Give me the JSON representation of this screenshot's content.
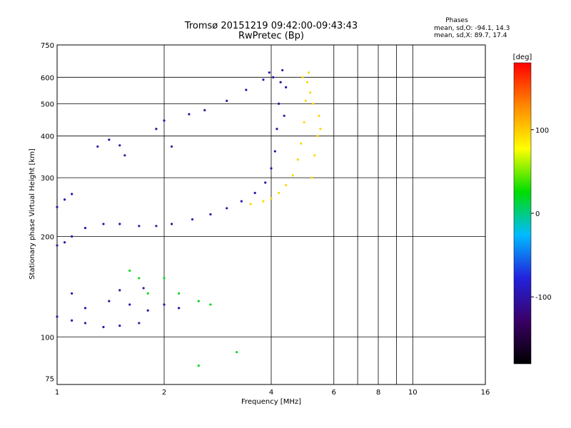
{
  "colors": {
    "background": "#ffffff",
    "axis": "#000000",
    "colorbar": [
      "#000000",
      "#3a0066",
      "#2222dd",
      "#00bbff",
      "#00dd00",
      "#ffff00",
      "#ff8800",
      "#ff0000"
    ]
  },
  "header": {
    "title_line1": "Tromsø 20151219 09:42:00-09:43:43",
    "title_line2": "RwPretec (Bp)",
    "stats_label": "Phases",
    "stats_o": "mean, sd,O: -94.1, 14.3",
    "stats_x": "mean, sd,X:  89.7, 17.4"
  },
  "chart_data": {
    "type": "scatter",
    "title": "Tromsø 20151219 09:42:00-09:43:43",
    "subtitle": "RwPretec (Bp)",
    "xlabel": "Frequency [MHz]",
    "ylabel": "Stationary phase Virtual Height [km]",
    "x_scale": "log",
    "y_scale": "log",
    "xlim": [
      1,
      16
    ],
    "ylim": [
      72,
      750
    ],
    "grid": true,
    "x_ticks": [
      1,
      2,
      4,
      6,
      8,
      10,
      16
    ],
    "x_tick_labels": [
      "1",
      "2",
      "4",
      "6",
      "8",
      "10",
      "16"
    ],
    "x_grid": [
      2,
      4,
      6,
      7,
      8,
      9,
      10
    ],
    "y_ticks": [
      75,
      100,
      200,
      300,
      400,
      500,
      600,
      750
    ],
    "y_tick_labels": [
      "75",
      "100",
      "200",
      "300",
      "400",
      "500",
      "600",
      "750"
    ],
    "y_grid": [
      100,
      200,
      300,
      400,
      500,
      600
    ],
    "colorbar": {
      "label": "[deg]",
      "min": -180,
      "max": 180,
      "ticks": [
        100,
        0,
        -100
      ],
      "tick_labels": [
        "100",
        "0",
        "-100"
      ]
    },
    "series": [
      {
        "color_value": -100,
        "traces": [
          {
            "f": 1.0,
            "h": 188
          },
          {
            "f": 1.05,
            "h": 192
          },
          {
            "f": 1.1,
            "h": 200
          },
          {
            "f": 1.2,
            "h": 212
          },
          {
            "f": 1.35,
            "h": 218
          },
          {
            "f": 1.5,
            "h": 218
          },
          {
            "f": 1.7,
            "h": 215
          },
          {
            "f": 1.9,
            "h": 215
          },
          {
            "f": 2.1,
            "h": 218
          },
          {
            "f": 2.4,
            "h": 225
          },
          {
            "f": 2.7,
            "h": 233
          },
          {
            "f": 3.0,
            "h": 243
          },
          {
            "f": 3.3,
            "h": 255
          },
          {
            "f": 3.6,
            "h": 270
          },
          {
            "f": 3.85,
            "h": 290
          },
          {
            "f": 4.0,
            "h": 320
          },
          {
            "f": 4.1,
            "h": 360
          },
          {
            "f": 4.15,
            "h": 420
          },
          {
            "f": 4.2,
            "h": 500
          },
          {
            "f": 4.25,
            "h": 580
          },
          {
            "f": 4.3,
            "h": 630
          },
          {
            "f": 4.35,
            "h": 460
          },
          {
            "f": 4.4,
            "h": 560
          },
          {
            "f": 3.95,
            "h": 620
          },
          {
            "f": 4.05,
            "h": 600
          },
          {
            "f": 1.0,
            "h": 245
          },
          {
            "f": 1.05,
            "h": 258
          },
          {
            "f": 1.1,
            "h": 268
          },
          {
            "f": 1.3,
            "h": 372
          },
          {
            "f": 1.4,
            "h": 390
          },
          {
            "f": 1.5,
            "h": 375
          },
          {
            "f": 1.55,
            "h": 350
          },
          {
            "f": 1.9,
            "h": 420
          },
          {
            "f": 2.0,
            "h": 445
          },
          {
            "f": 2.1,
            "h": 372
          },
          {
            "f": 2.35,
            "h": 465
          },
          {
            "f": 2.6,
            "h": 478
          },
          {
            "f": 3.0,
            "h": 510
          },
          {
            "f": 3.4,
            "h": 550
          },
          {
            "f": 3.8,
            "h": 590
          },
          {
            "f": 1.0,
            "h": 115
          },
          {
            "f": 1.1,
            "h": 112
          },
          {
            "f": 1.2,
            "h": 110
          },
          {
            "f": 1.35,
            "h": 107
          },
          {
            "f": 1.5,
            "h": 108
          },
          {
            "f": 1.7,
            "h": 110
          },
          {
            "f": 1.2,
            "h": 122
          },
          {
            "f": 1.4,
            "h": 128
          },
          {
            "f": 1.6,
            "h": 125
          },
          {
            "f": 1.8,
            "h": 120
          },
          {
            "f": 2.0,
            "h": 125
          },
          {
            "f": 2.2,
            "h": 122
          },
          {
            "f": 1.1,
            "h": 135
          },
          {
            "f": 1.5,
            "h": 138
          },
          {
            "f": 1.75,
            "h": 140
          }
        ]
      },
      {
        "color_value": 95,
        "traces": [
          {
            "f": 3.5,
            "h": 250
          },
          {
            "f": 3.8,
            "h": 255
          },
          {
            "f": 4.0,
            "h": 260
          },
          {
            "f": 4.2,
            "h": 270
          },
          {
            "f": 4.4,
            "h": 285
          },
          {
            "f": 4.6,
            "h": 305
          },
          {
            "f": 4.75,
            "h": 340
          },
          {
            "f": 4.85,
            "h": 380
          },
          {
            "f": 4.95,
            "h": 440
          },
          {
            "f": 5.0,
            "h": 510
          },
          {
            "f": 5.05,
            "h": 580
          },
          {
            "f": 5.1,
            "h": 620
          },
          {
            "f": 5.2,
            "h": 300
          },
          {
            "f": 5.3,
            "h": 350
          },
          {
            "f": 5.4,
            "h": 400
          },
          {
            "f": 5.5,
            "h": 420
          },
          {
            "f": 5.45,
            "h": 460
          },
          {
            "f": 5.25,
            "h": 500
          },
          {
            "f": 5.15,
            "h": 540
          },
          {
            "f": 4.9,
            "h": 600
          }
        ]
      },
      {
        "color_value": 20,
        "traces": [
          {
            "f": 1.6,
            "h": 158
          },
          {
            "f": 1.7,
            "h": 150
          },
          {
            "f": 1.8,
            "h": 135
          },
          {
            "f": 2.0,
            "h": 150
          },
          {
            "f": 2.2,
            "h": 135
          },
          {
            "f": 2.5,
            "h": 128
          },
          {
            "f": 2.7,
            "h": 125
          },
          {
            "f": 3.2,
            "h": 90
          },
          {
            "f": 2.5,
            "h": 82
          }
        ]
      }
    ]
  }
}
